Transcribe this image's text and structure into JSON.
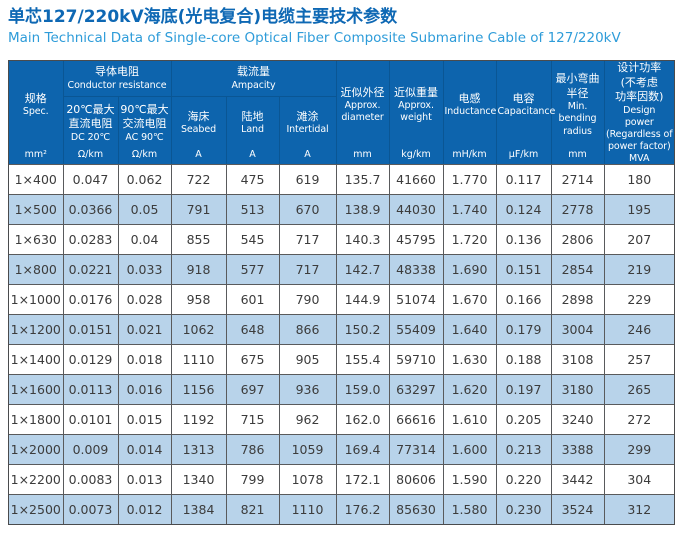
{
  "title": {
    "zh": "单芯127/220kV海底(光电复合)电缆主要技术参数",
    "en": "Main Technical Data of Single-core Optical Fiber Composite Submarine Cable of 127/220kV"
  },
  "table": {
    "groups": {
      "conductor": {
        "zh": "导体电阻",
        "en": "Conductor resistance"
      },
      "ampacity": {
        "zh": "载流量",
        "en": "Ampacity"
      }
    },
    "columns": [
      {
        "key": "spec",
        "zh": "规格",
        "en": "Spec.",
        "unit": "mm²"
      },
      {
        "key": "dc20",
        "zh": "20℃最大\n直流电阻",
        "en": "DC 20℃",
        "unit": "Ω/km"
      },
      {
        "key": "ac90",
        "zh": "90℃最大\n交流电阻",
        "en": "AC 90℃",
        "unit": "Ω/km"
      },
      {
        "key": "seabed",
        "zh": "海床",
        "en": "Seabed",
        "unit": "A"
      },
      {
        "key": "land",
        "zh": "陆地",
        "en": "Land",
        "unit": "A"
      },
      {
        "key": "intertidal",
        "zh": "滩涂",
        "en": "Intertidal",
        "unit": "A"
      },
      {
        "key": "diameter",
        "zh": "近似外径",
        "en": "Approx.\ndiameter",
        "unit": "mm"
      },
      {
        "key": "weight",
        "zh": "近似重量",
        "en": "Approx.\nweight",
        "unit": "kg/km"
      },
      {
        "key": "inductance",
        "zh": "电感",
        "en": "Inductance",
        "unit": "mH/km"
      },
      {
        "key": "capacitance",
        "zh": "电容",
        "en": "Capacitance",
        "unit": "μF/km"
      },
      {
        "key": "bending",
        "zh": "最小弯曲\n半径",
        "en": "Min.\nbending\nradius",
        "unit": "mm"
      },
      {
        "key": "power",
        "zh": "设计功率\n(不考虑\n功率因数)",
        "en": "Design\npower\n(Regardless of\npower factor)",
        "unit": "MVA"
      }
    ],
    "rows": [
      [
        "1×400",
        "0.047",
        "0.062",
        "722",
        "475",
        "619",
        "135.7",
        "41660",
        "1.770",
        "0.117",
        "2714",
        "180"
      ],
      [
        "1×500",
        "0.0366",
        "0.05",
        "791",
        "513",
        "670",
        "138.9",
        "44030",
        "1.740",
        "0.124",
        "2778",
        "195"
      ],
      [
        "1×630",
        "0.0283",
        "0.04",
        "855",
        "545",
        "717",
        "140.3",
        "45795",
        "1.720",
        "0.136",
        "2806",
        "207"
      ],
      [
        "1×800",
        "0.0221",
        "0.033",
        "918",
        "577",
        "717",
        "142.7",
        "48338",
        "1.690",
        "0.151",
        "2854",
        "219"
      ],
      [
        "1×1000",
        "0.0176",
        "0.028",
        "958",
        "601",
        "790",
        "144.9",
        "51074",
        "1.670",
        "0.166",
        "2898",
        "229"
      ],
      [
        "1×1200",
        "0.0151",
        "0.021",
        "1062",
        "648",
        "866",
        "150.2",
        "55409",
        "1.640",
        "0.179",
        "3004",
        "246"
      ],
      [
        "1×1400",
        "0.0129",
        "0.018",
        "1110",
        "675",
        "905",
        "155.4",
        "59710",
        "1.630",
        "0.188",
        "3108",
        "257"
      ],
      [
        "1×1600",
        "0.0113",
        "0.016",
        "1156",
        "697",
        "936",
        "159.0",
        "63297",
        "1.620",
        "0.197",
        "3180",
        "265"
      ],
      [
        "1×1800",
        "0.0101",
        "0.015",
        "1192",
        "715",
        "962",
        "162.0",
        "66616",
        "1.610",
        "0.205",
        "3240",
        "272"
      ],
      [
        "1×2000",
        "0.009",
        "0.014",
        "1313",
        "786",
        "1059",
        "169.4",
        "77314",
        "1.600",
        "0.213",
        "3388",
        "299"
      ],
      [
        "1×2200",
        "0.0083",
        "0.013",
        "1340",
        "799",
        "1078",
        "172.1",
        "80606",
        "1.590",
        "0.220",
        "3442",
        "304"
      ],
      [
        "1×2500",
        "0.0073",
        "0.012",
        "1384",
        "821",
        "1110",
        "176.2",
        "85630",
        "1.580",
        "0.230",
        "3524",
        "312"
      ]
    ]
  },
  "colors": {
    "header_bg": "#0d64ad",
    "header_border": "#0a5694",
    "row_stripe": "#b8d3ea",
    "grid_border": "#595a5c",
    "outer_border": "#4a4b4d",
    "title": "#0e68b4",
    "subtitle": "#2e9cd9",
    "text": "#3c3c3c"
  }
}
